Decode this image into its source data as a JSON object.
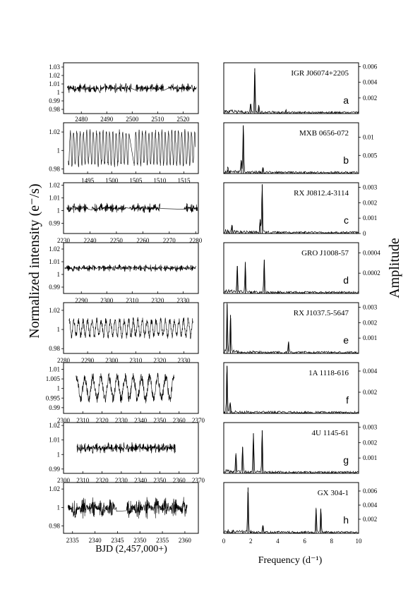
{
  "figure": {
    "ylabel_left": "Normalized intensity (e⁻/s)",
    "ylabel_right": "Amplitude",
    "xlabel_left": "BJD (2,457,000+)",
    "xlabel_right": "Frequency (d⁻¹)"
  },
  "chart_data": [
    {
      "type": "line",
      "panel": "a",
      "side": "light-curve",
      "source": "IGR J06074+2205",
      "xlim": [
        2473,
        2526
      ],
      "xticks": [
        2480,
        2490,
        2500,
        2510,
        2520
      ],
      "ylim": [
        0.975,
        1.035
      ],
      "yticks": [
        0.98,
        0.99,
        1,
        1.01,
        1.02,
        1.03
      ],
      "segments": [
        [
          2474.5,
          2486.8
        ],
        [
          2487.3,
          2499.6
        ],
        [
          2501.5,
          2512.3
        ],
        [
          2514.3,
          2525.2
        ]
      ],
      "amplitude": 0.006,
      "period_days": 0.43
    },
    {
      "type": "line",
      "panel": "a",
      "side": "periodogram",
      "source": "IGR J06074+2205",
      "xlim": [
        0,
        10
      ],
      "ylim": [
        0,
        0.0065
      ],
      "yticks": [
        0.002,
        0.004,
        0.006
      ],
      "peaks": [
        [
          2.3,
          0.0058
        ],
        [
          2.0,
          0.0012
        ],
        [
          2.6,
          0.0009
        ],
        [
          4.6,
          0.0003
        ]
      ]
    },
    {
      "type": "line",
      "panel": "b",
      "side": "light-curve",
      "source": "MXB 0656-072",
      "xlim": [
        1490,
        1518
      ],
      "xticks": [
        1495,
        1500,
        1505,
        1510,
        1515
      ],
      "ylim": [
        0.975,
        1.03
      ],
      "yticks": [
        0.98,
        1,
        1.02
      ],
      "segments": [
        [
          1491,
          1503.6
        ],
        [
          1504.6,
          1517.4
        ]
      ],
      "amplitude": 0.018,
      "period_days": 0.68
    },
    {
      "type": "line",
      "panel": "b",
      "side": "periodogram",
      "source": "MXB 0656-072",
      "xlim": [
        0,
        10
      ],
      "ylim": [
        0,
        0.014
      ],
      "yticks": [
        0.005,
        0.01
      ],
      "peaks": [
        [
          1.45,
          0.0133
        ],
        [
          1.3,
          0.0035
        ],
        [
          2.9,
          0.0015
        ],
        [
          0.3,
          0.001
        ]
      ]
    },
    {
      "type": "line",
      "panel": "c",
      "side": "light-curve",
      "source": "RX J0812.4-3114",
      "xlim": [
        2230,
        2281
      ],
      "xticks": [
        2230,
        2240,
        2250,
        2260,
        2270,
        2280
      ],
      "ylim": [
        0.982,
        1.022
      ],
      "yticks": [
        0.99,
        1,
        1.01,
        1.02
      ],
      "segments": [
        [
          2231.2,
          2239.2
        ],
        [
          2240.8,
          2253.5
        ],
        [
          2255,
          2266.5
        ],
        [
          2275.5,
          2280.7
        ]
      ],
      "amplitude": 0.004,
      "period_days": 0.35
    },
    {
      "type": "line",
      "panel": "c",
      "side": "periodogram",
      "source": "RX J0812.4-3114",
      "xlim": [
        0,
        10
      ],
      "ylim": [
        0,
        0.0033
      ],
      "yticks": [
        0,
        0.001,
        0.002,
        0.003
      ],
      "peaks": [
        [
          2.85,
          0.0032
        ],
        [
          2.7,
          0.0009
        ],
        [
          0.6,
          0.0005
        ]
      ]
    },
    {
      "type": "line",
      "panel": "d",
      "side": "light-curve",
      "source": "GRO J1008-57",
      "xlim": [
        2283,
        2336
      ],
      "xticks": [
        2290,
        2300,
        2310,
        2320,
        2330
      ],
      "ylim": [
        0.985,
        1.025
      ],
      "yticks": [
        0.99,
        1,
        1.01,
        1.02
      ],
      "segments": [
        [
          2283.5,
          2296
        ],
        [
          2296.8,
          2309.8
        ],
        [
          2310.6,
          2321.5
        ],
        [
          2322.4,
          2335
        ]
      ],
      "amplitude": 0.003,
      "period_days": 0.3
    },
    {
      "type": "line",
      "panel": "d",
      "side": "periodogram",
      "source": "GRO J1008-57",
      "xlim": [
        0,
        10
      ],
      "ylim": [
        0,
        0.0005
      ],
      "yticks": [
        0.0002,
        0.0004
      ],
      "peaks": [
        [
          3.0,
          0.00033
        ],
        [
          1.6,
          0.0003
        ],
        [
          1.0,
          0.00027
        ]
      ]
    },
    {
      "type": "line",
      "panel": "e",
      "side": "light-curve",
      "source": "RX J1037.5-5647",
      "xlim": [
        2280,
        2336
      ],
      "xticks": [
        2280,
        2290,
        2300,
        2310,
        2320,
        2330
      ],
      "ylim": [
        0.975,
        1.028
      ],
      "yticks": [
        0.98,
        1,
        1.02
      ],
      "segments": [
        [
          2282.3,
          2333.8
        ]
      ],
      "amplitude": 0.01,
      "period_days": 1.9
    },
    {
      "type": "line",
      "panel": "e",
      "side": "periodogram",
      "source": "RX J1037.5-5647",
      "xlim": [
        0,
        10
      ],
      "ylim": [
        0,
        0.0033
      ],
      "yticks": [
        0.001,
        0.002,
        0.003
      ],
      "peaks": [
        [
          0.25,
          0.0032
        ],
        [
          0.5,
          0.0025
        ],
        [
          4.8,
          0.0007
        ]
      ]
    },
    {
      "type": "line",
      "panel": "f",
      "side": "light-curve",
      "source": "1A 1118-616",
      "xlim": [
        2300,
        2370
      ],
      "xticks": [
        2300,
        2310,
        2320,
        2330,
        2340,
        2350,
        2360,
        2370
      ],
      "ylim": [
        0.987,
        1.0135
      ],
      "yticks": [
        0.99,
        0.995,
        1,
        1.005,
        1.01
      ],
      "segments": [
        [
          2306.5,
          2357.5
        ]
      ],
      "amplitude": 0.007,
      "period_days": 4.2
    },
    {
      "type": "line",
      "panel": "f",
      "side": "periodogram",
      "source": "1A 1118-616",
      "xlim": [
        0,
        10
      ],
      "ylim": [
        0,
        0.0048
      ],
      "yticks": [
        0.002,
        0.004
      ],
      "peaks": [
        [
          0.24,
          0.0045
        ],
        [
          0.48,
          0.0009
        ]
      ]
    },
    {
      "type": "line",
      "panel": "g",
      "side": "light-curve",
      "source": "4U 1145-61",
      "xlim": [
        2300,
        2370
      ],
      "xticks": [
        2300,
        2310,
        2320,
        2330,
        2340,
        2350,
        2360,
        2370
      ],
      "ylim": [
        0.987,
        1.022
      ],
      "yticks": [
        0.99,
        1,
        1.01,
        1.02
      ],
      "segments": [
        [
          2307,
          2331.5
        ],
        [
          2332.5,
          2358
        ]
      ],
      "amplitude": 0.004,
      "period_days": 0.4
    },
    {
      "type": "line",
      "panel": "g",
      "side": "periodogram",
      "source": "4U 1145-61",
      "xlim": [
        0,
        10
      ],
      "ylim": [
        0,
        0.0033
      ],
      "yticks": [
        0.001,
        0.002,
        0.003
      ],
      "peaks": [
        [
          2.2,
          0.0026
        ],
        [
          2.85,
          0.0028
        ],
        [
          1.4,
          0.0017
        ],
        [
          0.9,
          0.0012
        ]
      ]
    },
    {
      "type": "line",
      "panel": "h",
      "side": "light-curve",
      "source": "GX 304-1",
      "xlim": [
        2333,
        2363
      ],
      "xticks": [
        2335,
        2340,
        2345,
        2350,
        2355,
        2360
      ],
      "ylim": [
        0.972,
        1.027
      ],
      "yticks": [
        0.98,
        1,
        1.02
      ],
      "segments": [
        [
          2334,
          2344.8
        ],
        [
          2347,
          2360.5
        ]
      ],
      "amplitude": 0.012,
      "period_days": 0.55
    },
    {
      "type": "line",
      "panel": "h",
      "side": "periodogram",
      "source": "GX 304-1",
      "xlim": [
        0,
        10
      ],
      "ylim": [
        0,
        0.0072
      ],
      "yticks": [
        0.002,
        0.004,
        0.006
      ],
      "peaks": [
        [
          1.8,
          0.0065
        ],
        [
          6.85,
          0.0034
        ],
        [
          7.2,
          0.0034
        ],
        [
          2.9,
          0.0011
        ]
      ]
    }
  ]
}
